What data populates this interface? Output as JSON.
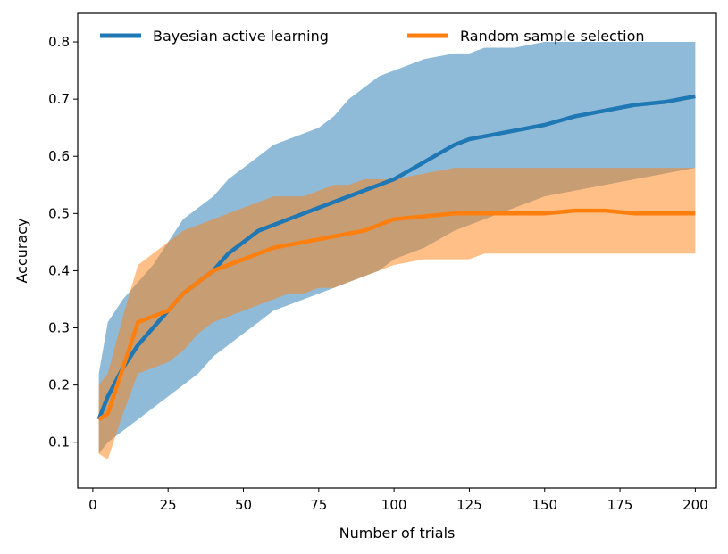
{
  "chart_data": {
    "type": "line",
    "xlabel": "Number of trials",
    "ylabel": "Accuracy",
    "xlim": [
      -5,
      207
    ],
    "ylim": [
      0.02,
      0.85
    ],
    "xticks": [
      0,
      25,
      50,
      75,
      100,
      125,
      150,
      175,
      200
    ],
    "yticks": [
      0.1,
      0.2,
      0.3,
      0.4,
      0.5,
      0.6,
      0.7,
      0.8
    ],
    "ytick_labels": [
      "0.1",
      "0.2",
      "0.3",
      "0.4",
      "0.5",
      "0.6",
      "0.7",
      "0.8"
    ],
    "legend_position": "top",
    "grid": false,
    "series": [
      {
        "name": "Bayesian active learning",
        "color": "#1f77b4",
        "band_color": "#1f77b4",
        "band_opacity": 0.5,
        "x": [
          2,
          5,
          10,
          15,
          20,
          25,
          30,
          35,
          40,
          45,
          50,
          55,
          60,
          65,
          70,
          75,
          80,
          85,
          90,
          95,
          100,
          110,
          120,
          125,
          130,
          140,
          150,
          160,
          170,
          180,
          190,
          200
        ],
        "mean": [
          0.14,
          0.18,
          0.23,
          0.27,
          0.3,
          0.33,
          0.36,
          0.38,
          0.4,
          0.43,
          0.45,
          0.47,
          0.48,
          0.49,
          0.5,
          0.51,
          0.52,
          0.53,
          0.54,
          0.55,
          0.56,
          0.59,
          0.62,
          0.63,
          0.635,
          0.645,
          0.655,
          0.67,
          0.68,
          0.69,
          0.695,
          0.705
        ],
        "upper": [
          0.22,
          0.31,
          0.35,
          0.38,
          0.41,
          0.45,
          0.49,
          0.51,
          0.53,
          0.56,
          0.58,
          0.6,
          0.62,
          0.63,
          0.64,
          0.65,
          0.67,
          0.7,
          0.72,
          0.74,
          0.75,
          0.77,
          0.78,
          0.78,
          0.79,
          0.79,
          0.8,
          0.8,
          0.8,
          0.8,
          0.8,
          0.8
        ],
        "lower": [
          0.08,
          0.1,
          0.12,
          0.14,
          0.16,
          0.18,
          0.2,
          0.22,
          0.25,
          0.27,
          0.29,
          0.31,
          0.33,
          0.34,
          0.35,
          0.36,
          0.37,
          0.38,
          0.39,
          0.4,
          0.42,
          0.44,
          0.47,
          0.48,
          0.49,
          0.51,
          0.53,
          0.54,
          0.55,
          0.56,
          0.57,
          0.58
        ]
      },
      {
        "name": "Random sample selection",
        "color": "#ff7f0e",
        "band_color": "#ff7f0e",
        "band_opacity": 0.5,
        "x": [
          2,
          5,
          10,
          15,
          20,
          25,
          30,
          35,
          40,
          45,
          50,
          55,
          60,
          65,
          70,
          75,
          80,
          85,
          90,
          95,
          100,
          110,
          120,
          125,
          130,
          140,
          150,
          160,
          170,
          180,
          190,
          200
        ],
        "mean": [
          0.14,
          0.15,
          0.23,
          0.31,
          0.32,
          0.33,
          0.36,
          0.38,
          0.4,
          0.41,
          0.42,
          0.43,
          0.44,
          0.445,
          0.45,
          0.455,
          0.46,
          0.465,
          0.47,
          0.48,
          0.49,
          0.495,
          0.5,
          0.5,
          0.5,
          0.5,
          0.5,
          0.505,
          0.505,
          0.5,
          0.5,
          0.5
        ],
        "upper": [
          0.2,
          0.22,
          0.32,
          0.41,
          0.43,
          0.45,
          0.47,
          0.48,
          0.49,
          0.5,
          0.51,
          0.52,
          0.53,
          0.53,
          0.53,
          0.54,
          0.55,
          0.55,
          0.56,
          0.56,
          0.56,
          0.57,
          0.58,
          0.58,
          0.58,
          0.58,
          0.58,
          0.58,
          0.58,
          0.58,
          0.58,
          0.58
        ],
        "lower": [
          0.08,
          0.07,
          0.15,
          0.22,
          0.23,
          0.24,
          0.26,
          0.29,
          0.31,
          0.32,
          0.33,
          0.34,
          0.35,
          0.36,
          0.36,
          0.37,
          0.37,
          0.38,
          0.39,
          0.4,
          0.41,
          0.42,
          0.42,
          0.42,
          0.43,
          0.43,
          0.43,
          0.43,
          0.43,
          0.43,
          0.43,
          0.43
        ]
      }
    ]
  }
}
